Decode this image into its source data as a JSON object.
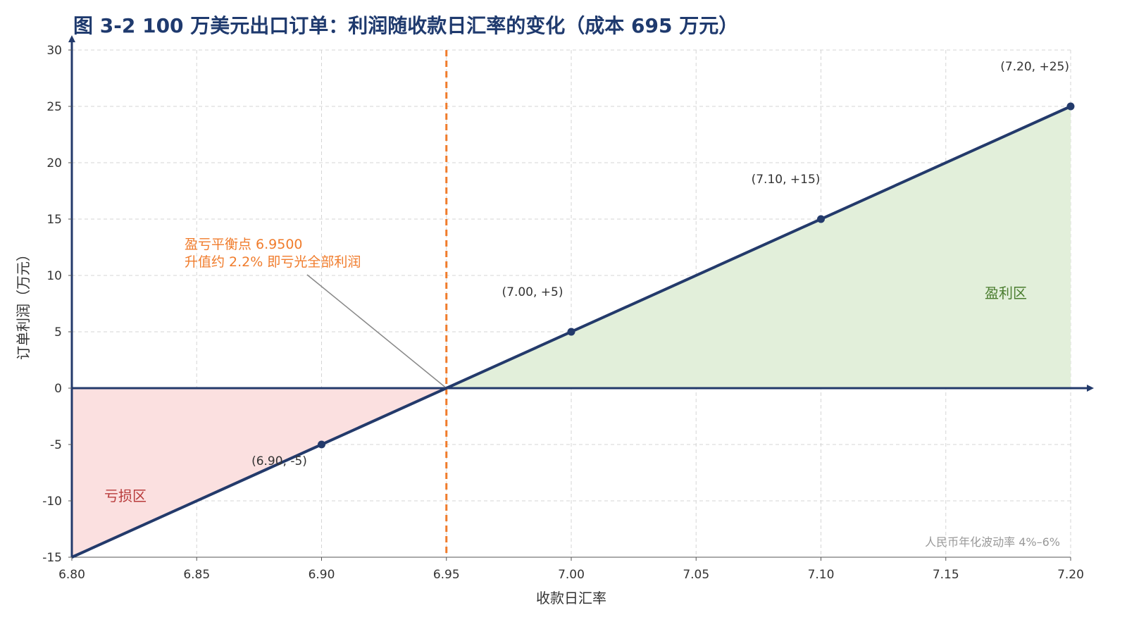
{
  "chart_data": {
    "type": "line",
    "title": "图 3-2 100 万美元出口订单：利润随收款日汇率的变化（成本 695 万元）",
    "xlabel": "收款日汇率",
    "ylabel": "订单利润（万元）",
    "xlim": [
      6.8,
      7.2
    ],
    "ylim": [
      -15,
      30
    ],
    "x_ticks": [
      6.8,
      6.85,
      6.9,
      6.95,
      7.0,
      7.05,
      7.1,
      7.15,
      7.2
    ],
    "x_tick_labels": [
      "6.80",
      "6.85",
      "6.90",
      "6.95",
      "7.00",
      "7.05",
      "7.10",
      "7.15",
      "7.20"
    ],
    "y_ticks": [
      -15,
      -10,
      -5,
      0,
      5,
      10,
      15,
      20,
      25,
      30
    ],
    "y_tick_labels": [
      "-15",
      "-10",
      "-5",
      "0",
      "5",
      "10",
      "15",
      "20",
      "25",
      "30"
    ],
    "grid": true,
    "series": [
      {
        "x": [
          6.8,
          7.2
        ],
        "y": [
          -15,
          25
        ]
      }
    ],
    "markers": [
      {
        "x": 6.9,
        "y": -5,
        "label": "(6.90, -5)"
      },
      {
        "x": 7.0,
        "y": 5,
        "label": "(7.00, +5)"
      },
      {
        "x": 7.1,
        "y": 15,
        "label": "(7.10, +15)"
      },
      {
        "x": 7.2,
        "y": 25,
        "label": "(7.20, +25)"
      }
    ],
    "breakeven": {
      "x": 6.95,
      "line1": "盈亏平衡点 6.9500",
      "line2": "升值约 2.2% 即亏光全部利润"
    },
    "regions": {
      "profit_label": "盈利区",
      "loss_label": "亏损区"
    },
    "note": "人民币年化波动率 4%–6%",
    "colors": {
      "line": "#233a6b",
      "title": "#1f3a6e",
      "breakeven": "#f07c2c",
      "profit_fill": "#e2efda",
      "profit_text": "#4a7d2f",
      "loss_fill": "#fbe0e0",
      "loss_text": "#b83b3b",
      "grid": "#d5d5d5",
      "note": "#999999"
    }
  }
}
